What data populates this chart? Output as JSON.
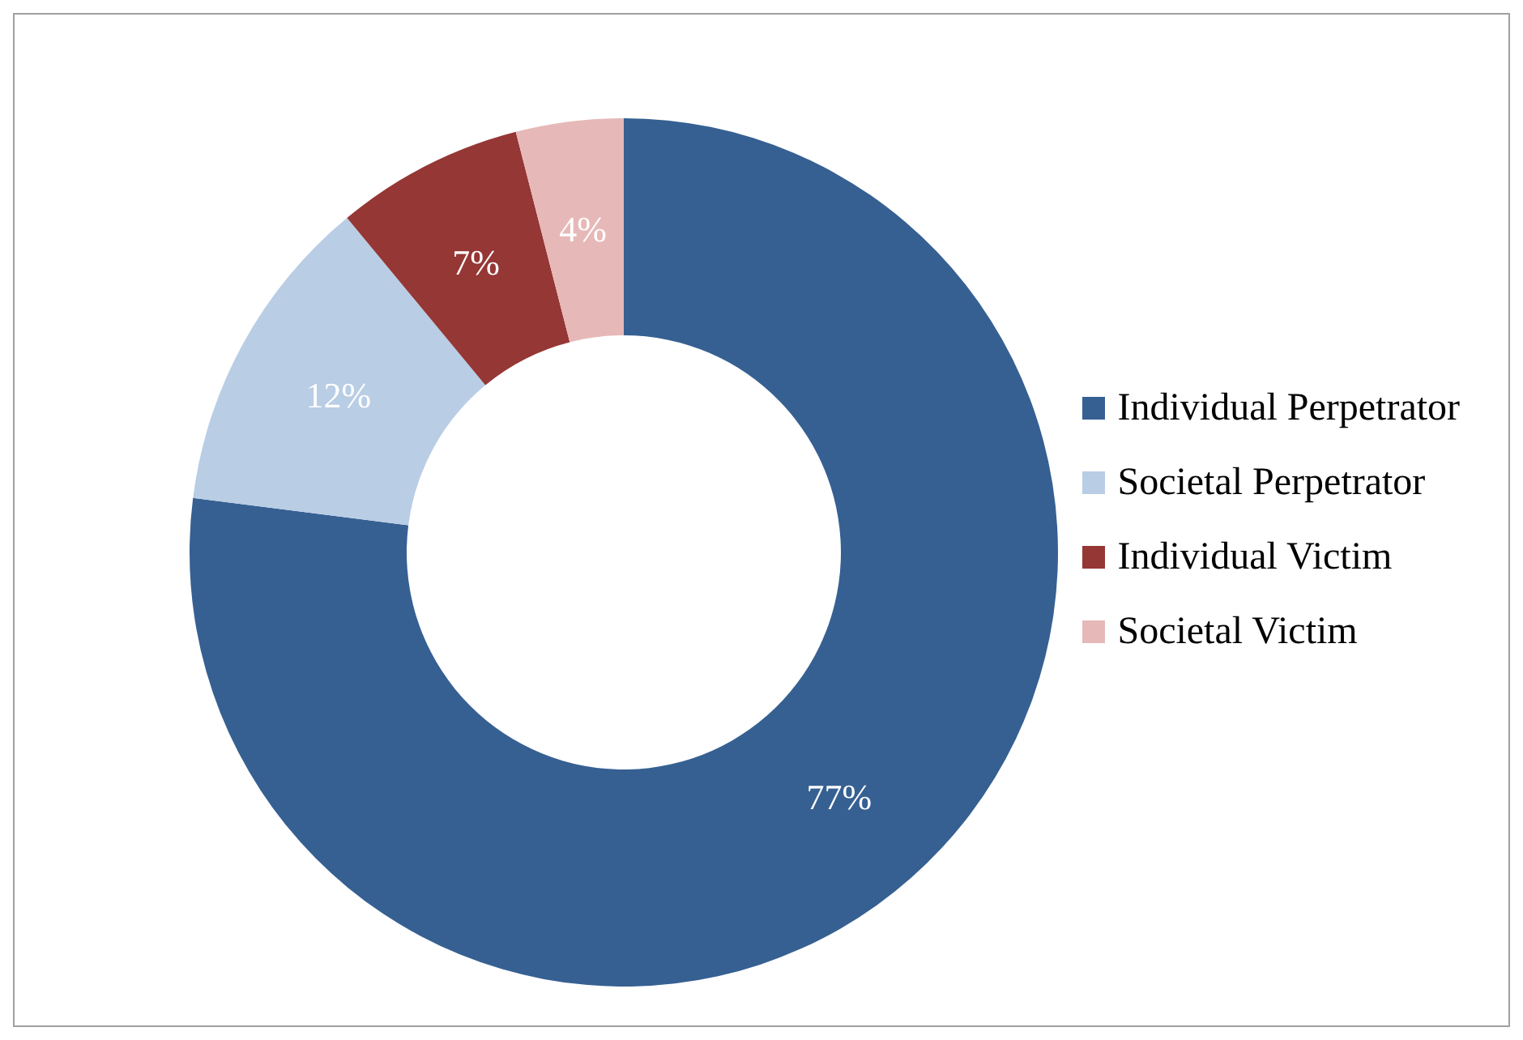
{
  "chart_data": {
    "type": "donut",
    "categories": [
      "Individual Perpetrator",
      "Societal Perpetrator",
      "Individual Victim",
      "Societal Victim"
    ],
    "values": [
      77,
      12,
      7,
      4
    ],
    "colors": [
      "#366092",
      "#b9cde5",
      "#953735",
      "#e6b9b8"
    ],
    "value_labels": [
      "77%",
      "12%",
      "7%",
      "4%"
    ],
    "legend": "right"
  }
}
